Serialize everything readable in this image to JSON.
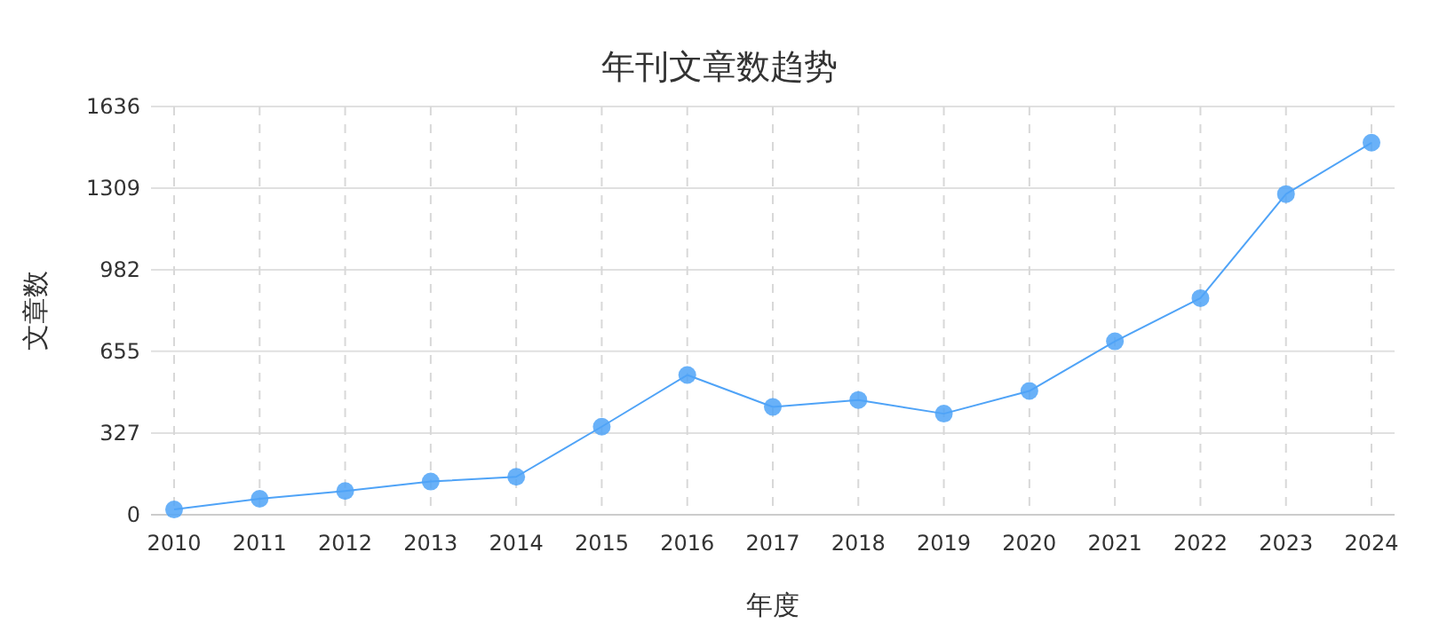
{
  "chart_data": {
    "type": "line",
    "title": "年刊文章数趋势",
    "xlabel": "年度",
    "ylabel": "文章数",
    "categories": [
      "2010",
      "2011",
      "2012",
      "2013",
      "2014",
      "2015",
      "2016",
      "2017",
      "2018",
      "2019",
      "2020",
      "2021",
      "2022",
      "2023",
      "2024"
    ],
    "series": [
      {
        "color": "#4fa3f7",
        "values": [
          21,
          64,
          95,
          133,
          152,
          353,
          560,
          432,
          460,
          405,
          496,
          695,
          868,
          1285,
          1491
        ]
      }
    ],
    "ylim": [
      0,
      1636
    ],
    "yticks": [
      0,
      327,
      655,
      982,
      1309,
      1636
    ],
    "grid": true,
    "marker": "circle",
    "line_style": "solid"
  }
}
